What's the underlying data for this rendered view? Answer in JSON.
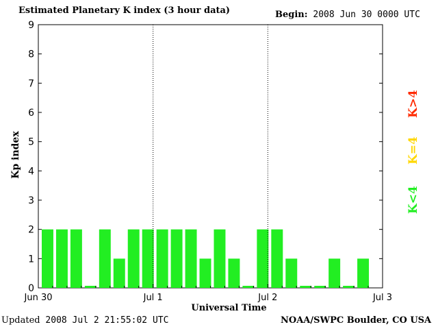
{
  "header": {
    "title": "Estimated Planetary K index (3 hour data)",
    "begin_label": "Begin:",
    "begin_value": "2008 Jun 30 0000 UTC"
  },
  "footer": {
    "updated_label": "Updated",
    "updated_value": "2008 Jul  2 21:55:02 UTC",
    "credit": "NOAA/SWPC Boulder, CO USA"
  },
  "legend": {
    "high": {
      "label": "K>4",
      "color": "#ff2a00"
    },
    "mid": {
      "label": "K=4",
      "color": "#ffd700"
    },
    "low": {
      "label": "K<4",
      "color": "#22ee22"
    }
  },
  "chart_data": {
    "type": "bar",
    "title": "Estimated Planetary K index (3 hour data)",
    "xlabel": "Universal Time",
    "ylabel": "Kp index",
    "ylim": [
      0,
      9
    ],
    "yticks": [
      0,
      1,
      2,
      3,
      4,
      5,
      6,
      7,
      8,
      9
    ],
    "xticks": [
      "Jun 30",
      "Jul 1",
      "Jul 2",
      "Jul 3"
    ],
    "x_interval_hours": 3,
    "day_separators": [
      "Jul 1",
      "Jul 2"
    ],
    "bar_color": "#22ee22",
    "values": [
      2,
      2,
      2,
      0,
      2,
      1,
      2,
      2,
      2,
      2,
      2,
      1,
      2,
      1,
      0,
      2,
      2,
      1,
      0,
      0,
      1,
      0,
      1
    ]
  }
}
